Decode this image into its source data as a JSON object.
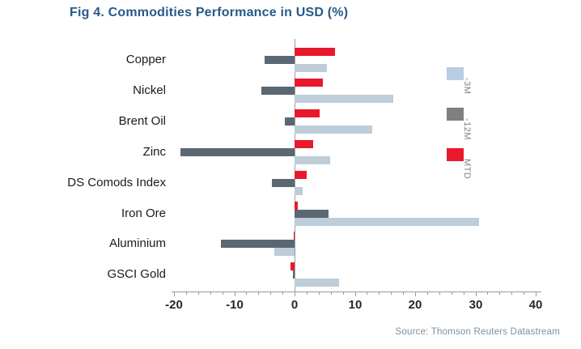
{
  "title": "Fig 4. Commodities Performance in USD (%)",
  "source_note": "Source: Thomson Reuters Datastream",
  "colors": {
    "title": "#27598A",
    "axis": "#9B9B9B",
    "tick_label": "#262626",
    "category_label": "#1A1A1A",
    "legend_label": "#808080",
    "source": "#7E909E",
    "background": "#FFFFFF"
  },
  "chart_data": {
    "type": "bar",
    "orientation": "horizontal",
    "title": "Fig 4. Commodities Performance in USD (%)",
    "xlabel": "",
    "ylabel": "",
    "categories": [
      "Copper",
      "Nickel",
      "Brent Oil",
      "Zinc",
      "DS Comods Index",
      "Iron Ore",
      "Aluminium",
      "GSCI Gold"
    ],
    "series": [
      {
        "name": "-3M",
        "bar_color": "#BECDD8",
        "legend_color": "#B8CCE4",
        "values": [
          5.4,
          16.4,
          12.9,
          5.9,
          1.3,
          30.6,
          -3.4,
          7.4
        ]
      },
      {
        "name": "-12M",
        "bar_color": "#5B6873",
        "legend_color": "#7F7F7F",
        "values": [
          -4.9,
          -5.5,
          -1.6,
          -18.9,
          -3.8,
          5.6,
          -12.2,
          -0.3
        ]
      },
      {
        "name": "MTD",
        "bar_color": "#E8192D",
        "legend_color": "#E8192D",
        "values": [
          6.7,
          4.7,
          4.1,
          3.1,
          2.0,
          0.5,
          -0.2,
          -0.7
        ]
      }
    ],
    "row_order_top_to_bottom": [
      "MTD",
      "-12M",
      "-3M"
    ],
    "xlim": [
      -20,
      40
    ],
    "xticks": [
      -20,
      -10,
      0,
      10,
      20,
      30,
      40
    ],
    "minor_tick_step": 2,
    "grid": false,
    "legend_position": "right",
    "legend_labels": [
      "-3M",
      "-12M",
      "MTD"
    ]
  }
}
